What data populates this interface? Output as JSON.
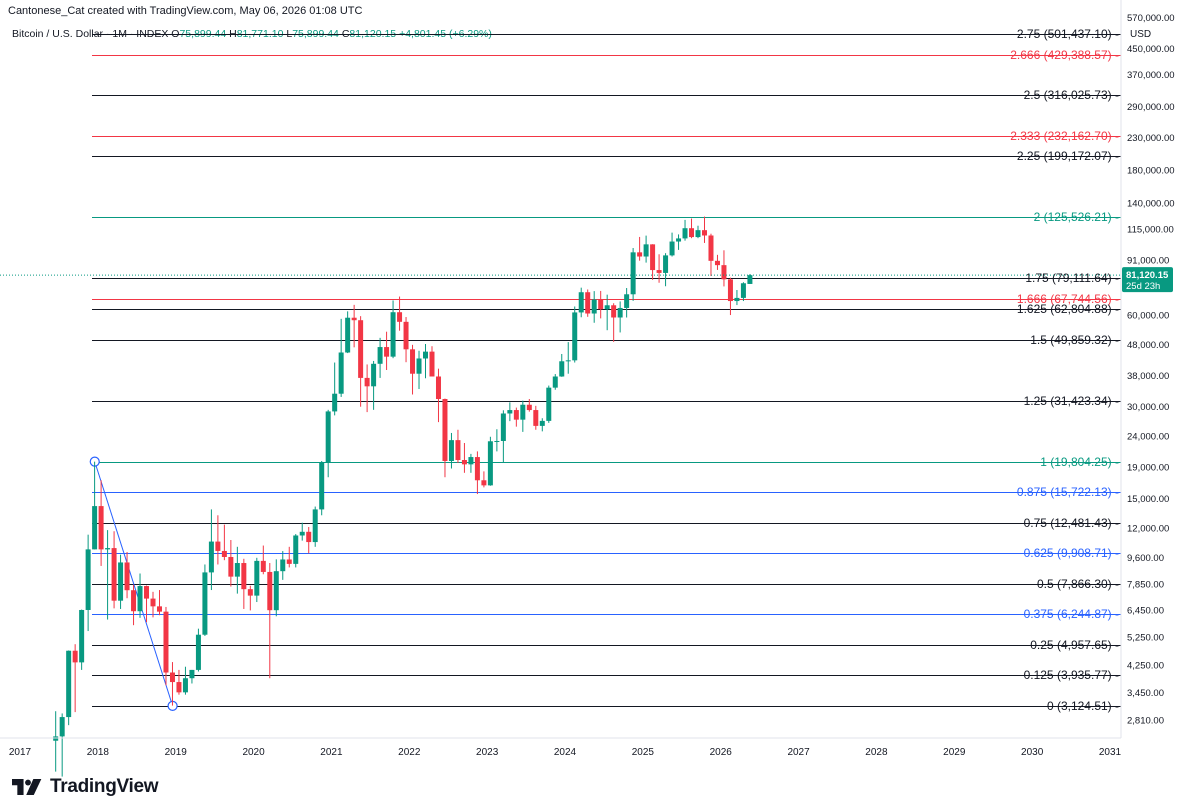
{
  "attribution": "Cantonese_Cat created with TradingView.com, May 06, 2026 01:08 UTC",
  "symbol": {
    "name": "Bitcoin / U.S. Dollar · 1M · INDEX",
    "open_label": "O",
    "open": "75,899.44",
    "high_label": "H",
    "high": "81,771.10",
    "low_label": "L",
    "low": "75,899.44",
    "close_label": "C",
    "close": "81,120.15",
    "change": "+4,801.45 (+6.29%)"
  },
  "price_axis": {
    "currency": "USD",
    "last_price": "81,120.15",
    "countdown": "25d 23h"
  },
  "brand": {
    "logo_text": "TradingView"
  },
  "colors": {
    "up": "#089981",
    "down": "#f23645",
    "fib_black": "#131722",
    "fib_red": "#f23645",
    "fib_teal": "#089981",
    "fib_blue": "#2962ff"
  },
  "chart_data": {
    "type": "candlestick",
    "y_scale": "log",
    "ylim": [
      2450,
      640000
    ],
    "xlim": [
      2017.0,
      2031.0
    ],
    "x_ticks": [
      "2017",
      "2018",
      "2019",
      "2020",
      "2021",
      "2022",
      "2023",
      "2024",
      "2025",
      "2026",
      "2027",
      "2028",
      "2029",
      "2030",
      "2031"
    ],
    "y_ticks": [
      "570,000.00",
      "450,000.00",
      "370,000.00",
      "290,000.00",
      "230,000.00",
      "180,000.00",
      "140,000.00",
      "115,000.00",
      "91,000.00",
      "60,000.00",
      "48,000.00",
      "38,000.00",
      "30,000.00",
      "24,000.00",
      "19,000.00",
      "15,000.00",
      "12,000.00",
      "9,600.00",
      "7,850.00",
      "6,450.00",
      "5,250.00",
      "4,250.00",
      "3,450.00",
      "2,810.00"
    ],
    "fib_levels": [
      {
        "level": "2.75",
        "price": "501,437.10",
        "value": 501437.1,
        "color": "black"
      },
      {
        "level": "2.666",
        "price": "429,388.57",
        "value": 429388.57,
        "color": "red"
      },
      {
        "level": "2.5",
        "price": "316,025.73",
        "value": 316025.73,
        "color": "black"
      },
      {
        "level": "2.333",
        "price": "232,162.70",
        "value": 232162.7,
        "color": "red"
      },
      {
        "level": "2.25",
        "price": "199,172.07",
        "value": 199172.07,
        "color": "black"
      },
      {
        "level": "2",
        "price": "125,526.21",
        "value": 125526.21,
        "color": "teal"
      },
      {
        "level": "1.75",
        "price": "79,111.64",
        "value": 79111.64,
        "color": "black"
      },
      {
        "level": "1.666",
        "price": "67,744.56",
        "value": 67744.56,
        "color": "red"
      },
      {
        "level": "1.625",
        "price": "62,804.88",
        "value": 62804.88,
        "color": "black"
      },
      {
        "level": "1.5",
        "price": "49,859.32",
        "value": 49859.32,
        "color": "black"
      },
      {
        "level": "1.25",
        "price": "31,423.34",
        "value": 31423.34,
        "color": "black"
      },
      {
        "level": "1",
        "price": "19,804.25",
        "value": 19804.25,
        "color": "teal"
      },
      {
        "level": "0.875",
        "price": "15,722.13",
        "value": 15722.13,
        "color": "blue"
      },
      {
        "level": "0.75",
        "price": "12,481.43",
        "value": 12481.43,
        "color": "black"
      },
      {
        "level": "0.625",
        "price": "9,908.71",
        "value": 9908.71,
        "color": "blue"
      },
      {
        "level": "0.5",
        "price": "7,866.30",
        "value": 7866.3,
        "color": "black"
      },
      {
        "level": "0.375",
        "price": "6,244.87",
        "value": 6244.87,
        "color": "blue"
      },
      {
        "level": "0.25",
        "price": "4,957.65",
        "value": 4957.65,
        "color": "black"
      },
      {
        "level": "0.125",
        "price": "3,935.77",
        "value": 3935.77,
        "color": "black"
      },
      {
        "level": "0",
        "price": "3,124.51",
        "value": 3124.51,
        "color": "black"
      }
    ],
    "anchors": [
      {
        "t": 2017.96,
        "value": 19804.25
      },
      {
        "t": 2018.96,
        "value": 3124.51
      }
    ],
    "last_price": 81120.15,
    "candles": [
      {
        "t": "2017-06",
        "o": 2400,
        "h": 3000,
        "l": 1900,
        "c": 2480
      },
      {
        "t": "2017-07",
        "o": 2480,
        "h": 2950,
        "l": 1830,
        "c": 2870
      },
      {
        "t": "2017-08",
        "o": 2870,
        "h": 4750,
        "l": 2700,
        "c": 4740
      },
      {
        "t": "2017-09",
        "o": 4740,
        "h": 4980,
        "l": 2980,
        "c": 4340
      },
      {
        "t": "2017-10",
        "o": 4340,
        "h": 6470,
        "l": 4100,
        "c": 6450
      },
      {
        "t": "2017-11",
        "o": 6450,
        "h": 11400,
        "l": 5500,
        "c": 10200
      },
      {
        "t": "2017-12",
        "o": 10200,
        "h": 19800,
        "l": 10200,
        "c": 14150
      },
      {
        "t": "2018-01",
        "o": 14150,
        "h": 17200,
        "l": 9000,
        "c": 10200
      },
      {
        "t": "2018-02",
        "o": 10200,
        "h": 11800,
        "l": 6000,
        "c": 10300
      },
      {
        "t": "2018-03",
        "o": 10300,
        "h": 11700,
        "l": 6530,
        "c": 6920
      },
      {
        "t": "2018-04",
        "o": 6920,
        "h": 9800,
        "l": 6500,
        "c": 9240
      },
      {
        "t": "2018-05",
        "o": 9240,
        "h": 10000,
        "l": 7050,
        "c": 7490
      },
      {
        "t": "2018-06",
        "o": 7490,
        "h": 7800,
        "l": 5750,
        "c": 6390
      },
      {
        "t": "2018-07",
        "o": 6390,
        "h": 8500,
        "l": 6080,
        "c": 7730
      },
      {
        "t": "2018-08",
        "o": 7730,
        "h": 7760,
        "l": 5880,
        "c": 7030
      },
      {
        "t": "2018-09",
        "o": 7030,
        "h": 7400,
        "l": 6100,
        "c": 6630
      },
      {
        "t": "2018-10",
        "o": 6630,
        "h": 7500,
        "l": 6200,
        "c": 6370
      },
      {
        "t": "2018-11",
        "o": 6370,
        "h": 6600,
        "l": 3650,
        "c": 4020
      },
      {
        "t": "2018-12",
        "o": 4020,
        "h": 4350,
        "l": 3130,
        "c": 3740
      },
      {
        "t": "2019-01",
        "o": 3740,
        "h": 4100,
        "l": 3400,
        "c": 3460
      },
      {
        "t": "2019-02",
        "o": 3460,
        "h": 4200,
        "l": 3400,
        "c": 3850
      },
      {
        "t": "2019-03",
        "o": 3850,
        "h": 4100,
        "l": 3700,
        "c": 4100
      },
      {
        "t": "2019-04",
        "o": 4100,
        "h": 5600,
        "l": 4050,
        "c": 5350
      },
      {
        "t": "2019-05",
        "o": 5350,
        "h": 9100,
        "l": 5300,
        "c": 8570
      },
      {
        "t": "2019-06",
        "o": 8570,
        "h": 13800,
        "l": 7500,
        "c": 10820
      },
      {
        "t": "2019-07",
        "o": 10820,
        "h": 13200,
        "l": 9100,
        "c": 10080
      },
      {
        "t": "2019-08",
        "o": 10080,
        "h": 12300,
        "l": 9400,
        "c": 9630
      },
      {
        "t": "2019-09",
        "o": 9630,
        "h": 10950,
        "l": 7700,
        "c": 8300
      },
      {
        "t": "2019-10",
        "o": 8300,
        "h": 10400,
        "l": 7300,
        "c": 9200
      },
      {
        "t": "2019-11",
        "o": 9200,
        "h": 9500,
        "l": 6500,
        "c": 7550
      },
      {
        "t": "2019-12",
        "o": 7550,
        "h": 7750,
        "l": 6430,
        "c": 7190
      },
      {
        "t": "2020-01",
        "o": 7190,
        "h": 9570,
        "l": 6850,
        "c": 9350
      },
      {
        "t": "2020-02",
        "o": 9350,
        "h": 10500,
        "l": 8450,
        "c": 8600
      },
      {
        "t": "2020-03",
        "o": 8600,
        "h": 9200,
        "l": 3850,
        "c": 6440
      },
      {
        "t": "2020-04",
        "o": 6440,
        "h": 9460,
        "l": 6150,
        "c": 8650
      },
      {
        "t": "2020-05",
        "o": 8650,
        "h": 10070,
        "l": 8100,
        "c": 9450
      },
      {
        "t": "2020-06",
        "o": 9450,
        "h": 10400,
        "l": 8900,
        "c": 9140
      },
      {
        "t": "2020-07",
        "o": 9140,
        "h": 11450,
        "l": 8900,
        "c": 11330
      },
      {
        "t": "2020-08",
        "o": 11330,
        "h": 12480,
        "l": 10900,
        "c": 11650
      },
      {
        "t": "2020-09",
        "o": 11650,
        "h": 12080,
        "l": 9900,
        "c": 10780
      },
      {
        "t": "2020-10",
        "o": 10780,
        "h": 14100,
        "l": 10400,
        "c": 13800
      },
      {
        "t": "2020-11",
        "o": 13800,
        "h": 19900,
        "l": 13200,
        "c": 19700
      },
      {
        "t": "2020-12",
        "o": 19700,
        "h": 29300,
        "l": 17600,
        "c": 28950
      },
      {
        "t": "2021-01",
        "o": 28950,
        "h": 41900,
        "l": 28100,
        "c": 33100
      },
      {
        "t": "2021-02",
        "o": 33100,
        "h": 58300,
        "l": 32300,
        "c": 45200
      },
      {
        "t": "2021-03",
        "o": 45200,
        "h": 61700,
        "l": 45000,
        "c": 58800
      },
      {
        "t": "2021-04",
        "o": 58800,
        "h": 64800,
        "l": 47000,
        "c": 57700
      },
      {
        "t": "2021-05",
        "o": 57700,
        "h": 59500,
        "l": 30000,
        "c": 37300
      },
      {
        "t": "2021-06",
        "o": 37300,
        "h": 41300,
        "l": 28800,
        "c": 35000
      },
      {
        "t": "2021-07",
        "o": 35000,
        "h": 42400,
        "l": 29300,
        "c": 41500
      },
      {
        "t": "2021-08",
        "o": 41500,
        "h": 50500,
        "l": 37300,
        "c": 47100
      },
      {
        "t": "2021-09",
        "o": 47100,
        "h": 52900,
        "l": 39600,
        "c": 43800
      },
      {
        "t": "2021-10",
        "o": 43800,
        "h": 67000,
        "l": 43300,
        "c": 61300
      },
      {
        "t": "2021-11",
        "o": 61300,
        "h": 69000,
        "l": 53300,
        "c": 57000
      },
      {
        "t": "2021-12",
        "o": 57000,
        "h": 59100,
        "l": 42000,
        "c": 46300
      },
      {
        "t": "2022-01",
        "o": 46300,
        "h": 47900,
        "l": 32900,
        "c": 38500
      },
      {
        "t": "2022-02",
        "o": 38500,
        "h": 45800,
        "l": 34300,
        "c": 43200
      },
      {
        "t": "2022-03",
        "o": 43200,
        "h": 48200,
        "l": 37200,
        "c": 45500
      },
      {
        "t": "2022-04",
        "o": 45500,
        "h": 47400,
        "l": 37700,
        "c": 37700
      },
      {
        "t": "2022-05",
        "o": 37700,
        "h": 40000,
        "l": 26700,
        "c": 31800
      },
      {
        "t": "2022-06",
        "o": 31800,
        "h": 31900,
        "l": 17600,
        "c": 19900
      },
      {
        "t": "2022-07",
        "o": 19900,
        "h": 24600,
        "l": 18800,
        "c": 23300
      },
      {
        "t": "2022-08",
        "o": 23300,
        "h": 25200,
        "l": 19600,
        "c": 20050
      },
      {
        "t": "2022-09",
        "o": 20050,
        "h": 22800,
        "l": 18200,
        "c": 19400
      },
      {
        "t": "2022-10",
        "o": 19400,
        "h": 21000,
        "l": 18200,
        "c": 20500
      },
      {
        "t": "2022-11",
        "o": 20500,
        "h": 21400,
        "l": 15500,
        "c": 17200
      },
      {
        "t": "2022-12",
        "o": 17200,
        "h": 18400,
        "l": 16300,
        "c": 16550
      },
      {
        "t": "2023-01",
        "o": 16550,
        "h": 23900,
        "l": 16500,
        "c": 23100
      },
      {
        "t": "2023-02",
        "o": 23100,
        "h": 25300,
        "l": 21400,
        "c": 23150
      },
      {
        "t": "2023-03",
        "o": 23150,
        "h": 29200,
        "l": 19600,
        "c": 28500
      },
      {
        "t": "2023-04",
        "o": 28500,
        "h": 31000,
        "l": 26900,
        "c": 29250
      },
      {
        "t": "2023-05",
        "o": 29250,
        "h": 29800,
        "l": 25800,
        "c": 27200
      },
      {
        "t": "2023-06",
        "o": 27200,
        "h": 31400,
        "l": 24800,
        "c": 30450
      },
      {
        "t": "2023-07",
        "o": 30450,
        "h": 31800,
        "l": 28900,
        "c": 29250
      },
      {
        "t": "2023-08",
        "o": 29250,
        "h": 30200,
        "l": 25200,
        "c": 25950
      },
      {
        "t": "2023-09",
        "o": 25950,
        "h": 27500,
        "l": 24900,
        "c": 26950
      },
      {
        "t": "2023-10",
        "o": 26950,
        "h": 35200,
        "l": 26550,
        "c": 34650
      },
      {
        "t": "2023-11",
        "o": 34650,
        "h": 38400,
        "l": 34100,
        "c": 37700
      },
      {
        "t": "2023-12",
        "o": 37700,
        "h": 44700,
        "l": 37600,
        "c": 42300
      },
      {
        "t": "2024-01",
        "o": 42300,
        "h": 48900,
        "l": 38500,
        "c": 42600
      },
      {
        "t": "2024-02",
        "o": 42600,
        "h": 64000,
        "l": 41900,
        "c": 61200
      },
      {
        "t": "2024-03",
        "o": 61200,
        "h": 73800,
        "l": 59000,
        "c": 71300
      },
      {
        "t": "2024-04",
        "o": 71300,
        "h": 72800,
        "l": 59200,
        "c": 60700
      },
      {
        "t": "2024-05",
        "o": 60700,
        "h": 71900,
        "l": 56600,
        "c": 67500
      },
      {
        "t": "2024-06",
        "o": 67500,
        "h": 72000,
        "l": 58500,
        "c": 62700
      },
      {
        "t": "2024-07",
        "o": 62700,
        "h": 70000,
        "l": 53500,
        "c": 64600
      },
      {
        "t": "2024-08",
        "o": 64600,
        "h": 65600,
        "l": 49000,
        "c": 58900
      },
      {
        "t": "2024-09",
        "o": 58900,
        "h": 66500,
        "l": 52600,
        "c": 63300
      },
      {
        "t": "2024-10",
        "o": 63300,
        "h": 73600,
        "l": 58900,
        "c": 70200
      },
      {
        "t": "2024-11",
        "o": 70200,
        "h": 99600,
        "l": 66800,
        "c": 96400
      },
      {
        "t": "2024-12",
        "o": 96400,
        "h": 108300,
        "l": 90500,
        "c": 93400
      },
      {
        "t": "2025-01",
        "o": 93400,
        "h": 109400,
        "l": 89200,
        "c": 102400
      },
      {
        "t": "2025-02",
        "o": 102400,
        "h": 102500,
        "l": 78300,
        "c": 84300
      },
      {
        "t": "2025-03",
        "o": 84300,
        "h": 95000,
        "l": 76600,
        "c": 82500
      },
      {
        "t": "2025-04",
        "o": 82500,
        "h": 95800,
        "l": 74600,
        "c": 94200
      },
      {
        "t": "2025-05",
        "o": 94200,
        "h": 111900,
        "l": 93400,
        "c": 104600
      },
      {
        "t": "2025-06",
        "o": 104600,
        "h": 110400,
        "l": 98200,
        "c": 107100
      },
      {
        "t": "2025-07",
        "o": 107100,
        "h": 123200,
        "l": 105300,
        "c": 115700
      },
      {
        "t": "2025-08",
        "o": 115700,
        "h": 124500,
        "l": 107300,
        "c": 108200
      },
      {
        "t": "2025-09",
        "o": 108200,
        "h": 117900,
        "l": 107300,
        "c": 114000
      },
      {
        "t": "2025-10",
        "o": 114000,
        "h": 126300,
        "l": 103500,
        "c": 109500
      },
      {
        "t": "2025-11",
        "o": 109500,
        "h": 111000,
        "l": 80600,
        "c": 90400
      },
      {
        "t": "2025-12",
        "o": 90400,
        "h": 94600,
        "l": 84400,
        "c": 87500
      },
      {
        "t": "2026-01",
        "o": 87500,
        "h": 97900,
        "l": 74500,
        "c": 78600
      },
      {
        "t": "2026-02",
        "o": 78600,
        "h": 79600,
        "l": 60000,
        "c": 66700
      },
      {
        "t": "2026-03",
        "o": 66700,
        "h": 72500,
        "l": 64700,
        "c": 68300
      },
      {
        "t": "2026-04",
        "o": 68300,
        "h": 76900,
        "l": 66700,
        "c": 76300
      },
      {
        "t": "2026-05",
        "o": 75899.44,
        "h": 81771.1,
        "l": 75899.44,
        "c": 81120.15
      }
    ]
  }
}
